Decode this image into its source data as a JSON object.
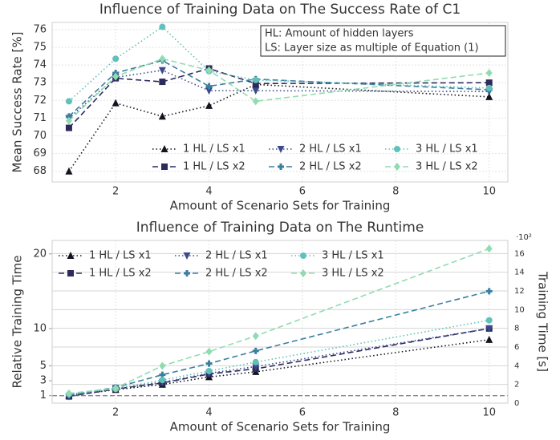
{
  "chart_data": [
    {
      "type": "line",
      "title": "Influence of Training Data on The Success Rate of C1",
      "xlabel": "Amount of Scenario Sets for Training",
      "ylabel": "Mean Success Rate [%]",
      "annotation": [
        "HL: Amount of hidden layers",
        "LS: Layer size as multiple of Equation (1)"
      ],
      "x": [
        1,
        2,
        3,
        4,
        5,
        10
      ],
      "series": [
        {
          "name": "1 HL / LS x1",
          "color": "#14141e",
          "dash": "dotted",
          "marker": "triangle-up",
          "values": [
            68.0,
            71.85,
            71.1,
            71.7,
            72.9,
            72.2
          ]
        },
        {
          "name": "1 HL / LS x2",
          "color": "#2d2a5c",
          "dash": "dashed",
          "marker": "square",
          "values": [
            70.45,
            73.25,
            73.05,
            73.8,
            72.95,
            73.0
          ]
        },
        {
          "name": "2 HL / LS x1",
          "color": "#3b4a8c",
          "dash": "dotted",
          "marker": "triangle-down",
          "values": [
            71.0,
            73.3,
            73.7,
            72.55,
            72.55,
            72.5
          ]
        },
        {
          "name": "2 HL / LS x2",
          "color": "#3a7fa0",
          "dash": "dashed",
          "marker": "plus",
          "values": [
            71.1,
            73.55,
            74.25,
            72.8,
            73.2,
            72.6
          ]
        },
        {
          "name": "3 HL / LS x1",
          "color": "#5fc1b9",
          "dash": "dotted",
          "marker": "circle",
          "values": [
            71.95,
            74.35,
            76.15,
            73.65,
            73.15,
            72.7
          ]
        },
        {
          "name": "3 HL / LS x2",
          "color": "#8fdcb1",
          "dash": "dashed",
          "marker": "diamond",
          "values": [
            70.85,
            73.35,
            74.35,
            73.7,
            71.95,
            73.55
          ]
        }
      ],
      "xlim": [
        0.64,
        10.4
      ],
      "xticks": [
        2,
        4,
        6,
        8,
        10
      ],
      "ylim": [
        67.4,
        76.4
      ],
      "yticks": [
        68,
        69,
        70,
        71,
        72,
        73,
        74,
        75,
        76
      ],
      "grid": true,
      "legend": "lower right"
    },
    {
      "type": "line",
      "title": "Influence of Training Data on The Runtime",
      "xlabel": "Amount of Scenario Sets for Training",
      "ylabel": "Relative Training Time",
      "y2label": "Training Time [s]",
      "y2_offset_label": "·10²",
      "x": [
        1,
        2,
        3,
        4,
        5,
        10
      ],
      "series": [
        {
          "name": "1 HL / LS x1",
          "color": "#14141e",
          "dash": "dotted",
          "marker": "triangle-up",
          "values": [
            1.0,
            1.8,
            2.5,
            3.5,
            4.2,
            8.5
          ]
        },
        {
          "name": "1 HL / LS x2",
          "color": "#2d2a5c",
          "dash": "dashed",
          "marker": "square",
          "values": [
            0.9,
            1.9,
            2.7,
            3.9,
            4.6,
            10.0
          ]
        },
        {
          "name": "2 HL / LS x1",
          "color": "#3b4a8c",
          "dash": "dotted",
          "marker": "triangle-down",
          "values": [
            0.9,
            2.0,
            2.8,
            4.0,
            4.9,
            10.0
          ]
        },
        {
          "name": "2 HL / LS x2",
          "color": "#3a7fa0",
          "dash": "dashed",
          "marker": "plus",
          "values": [
            1.1,
            2.1,
            3.8,
            5.3,
            7.0,
            15.0
          ]
        },
        {
          "name": "3 HL / LS x1",
          "color": "#5fc1b9",
          "dash": "dotted",
          "marker": "circle",
          "values": [
            1.2,
            1.9,
            3.1,
            4.3,
            5.5,
            11.1
          ]
        },
        {
          "name": "3 HL / LS x2",
          "color": "#8fdcb1",
          "dash": "dashed",
          "marker": "diamond",
          "values": [
            1.3,
            2.0,
            5.0,
            6.9,
            9.0,
            20.7
          ]
        }
      ],
      "xlim": [
        0.64,
        10.4
      ],
      "xticks": [
        2,
        4,
        6,
        8,
        10
      ],
      "ylim": [
        0,
        21.8
      ],
      "yticks": [
        1,
        3,
        5,
        10,
        20
      ],
      "y2lim": [
        0,
        17.4
      ],
      "y2ticks": [
        0,
        2,
        4,
        6,
        8,
        10,
        12,
        14,
        16
      ],
      "reference_line": 1,
      "grid": true,
      "legend": "upper left"
    }
  ]
}
